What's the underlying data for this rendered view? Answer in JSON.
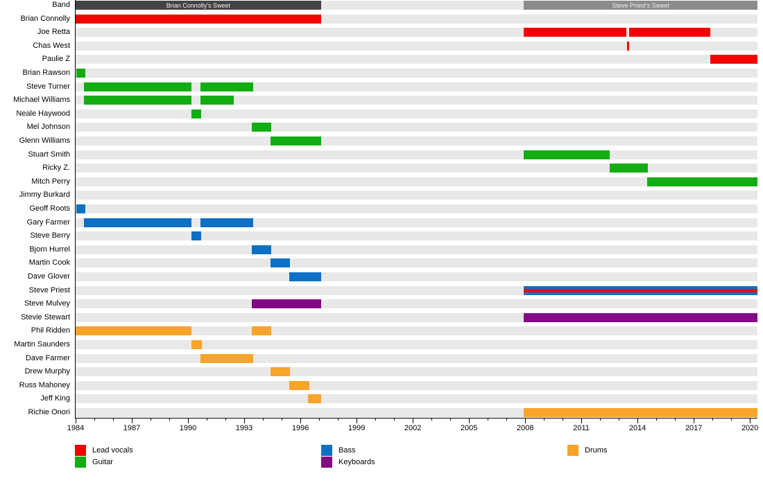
{
  "chart_data": {
    "type": "bar",
    "variant": "band-membership-timeline-gantt",
    "title": "",
    "x_axis": {
      "min": 1984,
      "max": 2020.4,
      "major_ticks": [
        1984,
        1987,
        1990,
        1993,
        1996,
        1999,
        2002,
        2005,
        2008,
        2011,
        2014,
        2017,
        2020
      ],
      "minor_step": 1,
      "grid": "off"
    },
    "role_colors": {
      "vocals": "#f40000",
      "guitar": "#12ad12",
      "bass": "#0d70c4",
      "keyboards": "#840984",
      "drums": "#f8a32a",
      "band_early": "#434343",
      "band_late": "#8b8b8b"
    },
    "track_color": "#e8e8e8",
    "legend": [
      {
        "label": "Lead vocals",
        "role": "vocals",
        "col": 0,
        "row": 0
      },
      {
        "label": "Guitar",
        "role": "guitar",
        "col": 0,
        "row": 1
      },
      {
        "label": "Bass",
        "role": "bass",
        "col": 1,
        "row": 0
      },
      {
        "label": "Keyboards",
        "role": "keyboards",
        "col": 1,
        "row": 1
      },
      {
        "label": "Drums",
        "role": "drums",
        "col": 2,
        "row": 0
      }
    ],
    "rows": [
      {
        "name": "Band",
        "segments": [
          {
            "start": 1984.0,
            "end": 1997.1,
            "role": "band_early",
            "label": "Brian Connolly's Sweet"
          },
          {
            "start": 2007.93,
            "end": 2020.4,
            "role": "band_late",
            "label": "Steve Priest's Sweet"
          }
        ]
      },
      {
        "name": "Brian Connolly",
        "segments": [
          {
            "start": 1984.0,
            "end": 1997.1,
            "role": "vocals"
          }
        ]
      },
      {
        "name": "Joe Retta",
        "segments": [
          {
            "start": 2007.93,
            "end": 2013.42,
            "role": "vocals"
          },
          {
            "start": 2013.55,
            "end": 2017.87,
            "role": "vocals"
          }
        ]
      },
      {
        "name": "Chas West",
        "segments": [
          {
            "start": 2013.42,
            "end": 2013.55,
            "role": "vocals"
          }
        ]
      },
      {
        "name": "Paulie Z",
        "segments": [
          {
            "start": 2017.87,
            "end": 2020.4,
            "role": "vocals"
          }
        ]
      },
      {
        "name": "Brian Rawson",
        "segments": [
          {
            "start": 1984.05,
            "end": 1984.5,
            "role": "guitar"
          }
        ]
      },
      {
        "name": "Steve Turner",
        "segments": [
          {
            "start": 1984.45,
            "end": 1990.2,
            "role": "guitar"
          },
          {
            "start": 1990.68,
            "end": 1993.48,
            "role": "guitar"
          }
        ]
      },
      {
        "name": "Michael Williams",
        "segments": [
          {
            "start": 1984.45,
            "end": 1990.2,
            "role": "guitar"
          },
          {
            "start": 1990.68,
            "end": 1992.45,
            "role": "guitar"
          }
        ]
      },
      {
        "name": "Neale Haywood",
        "segments": [
          {
            "start": 1990.2,
            "end": 1990.7,
            "role": "guitar"
          }
        ]
      },
      {
        "name": "Mel Johnson",
        "segments": [
          {
            "start": 1993.4,
            "end": 1994.45,
            "role": "guitar"
          }
        ]
      },
      {
        "name": "Glenn Williams",
        "segments": [
          {
            "start": 1994.4,
            "end": 1997.1,
            "role": "guitar"
          }
        ]
      },
      {
        "name": "Stuart Smith",
        "segments": [
          {
            "start": 2007.93,
            "end": 2012.5,
            "role": "guitar"
          }
        ]
      },
      {
        "name": "Ricky Z.",
        "segments": [
          {
            "start": 2012.5,
            "end": 2014.55,
            "role": "guitar"
          }
        ]
      },
      {
        "name": "Mitch Perry",
        "segments": [
          {
            "start": 2014.5,
            "end": 2020.4,
            "role": "guitar"
          }
        ]
      },
      {
        "name": "Jimmy Burkard",
        "segments": []
      },
      {
        "name": "Geoff Roots",
        "segments": [
          {
            "start": 1984.05,
            "end": 1984.5,
            "role": "bass"
          }
        ]
      },
      {
        "name": "Gary Farmer",
        "segments": [
          {
            "start": 1984.45,
            "end": 1990.2,
            "role": "bass"
          },
          {
            "start": 1990.68,
            "end": 1993.48,
            "role": "bass"
          }
        ]
      },
      {
        "name": "Steve Berry",
        "segments": [
          {
            "start": 1990.2,
            "end": 1990.7,
            "role": "bass"
          }
        ]
      },
      {
        "name": "Bjorn Hurrel",
        "segments": [
          {
            "start": 1993.4,
            "end": 1994.45,
            "role": "bass"
          }
        ]
      },
      {
        "name": "Martin Cook",
        "segments": [
          {
            "start": 1994.4,
            "end": 1995.45,
            "role": "bass"
          }
        ]
      },
      {
        "name": "Dave Glover",
        "segments": [
          {
            "start": 1995.4,
            "end": 1997.1,
            "role": "bass"
          }
        ]
      },
      {
        "name": "Steve Priest",
        "segments": [
          {
            "start": 2007.93,
            "end": 2020.4,
            "role": "bass",
            "stripe": "vocals"
          }
        ]
      },
      {
        "name": "Steve Mulvey",
        "segments": [
          {
            "start": 1993.4,
            "end": 1997.1,
            "role": "keyboards"
          }
        ]
      },
      {
        "name": "Stevie Stewart",
        "segments": [
          {
            "start": 2007.93,
            "end": 2020.4,
            "role": "keyboards"
          }
        ]
      },
      {
        "name": "Phil Ridden",
        "segments": [
          {
            "start": 1984.0,
            "end": 1990.2,
            "role": "drums"
          },
          {
            "start": 1993.4,
            "end": 1994.45,
            "role": "drums"
          }
        ]
      },
      {
        "name": "Martin Saunders",
        "segments": [
          {
            "start": 1990.2,
            "end": 1990.75,
            "role": "drums"
          }
        ]
      },
      {
        "name": "Dave Farmer",
        "segments": [
          {
            "start": 1990.68,
            "end": 1993.48,
            "role": "drums"
          }
        ]
      },
      {
        "name": "Drew Murphy",
        "segments": [
          {
            "start": 1994.4,
            "end": 1995.45,
            "role": "drums"
          }
        ]
      },
      {
        "name": "Russ Mahoney",
        "segments": [
          {
            "start": 1995.4,
            "end": 1996.48,
            "role": "drums"
          }
        ]
      },
      {
        "name": "Jeff King",
        "segments": [
          {
            "start": 1996.4,
            "end": 1997.1,
            "role": "drums"
          }
        ]
      },
      {
        "name": "Richie Onori",
        "segments": [
          {
            "start": 2007.93,
            "end": 2020.4,
            "role": "drums"
          }
        ]
      }
    ]
  }
}
